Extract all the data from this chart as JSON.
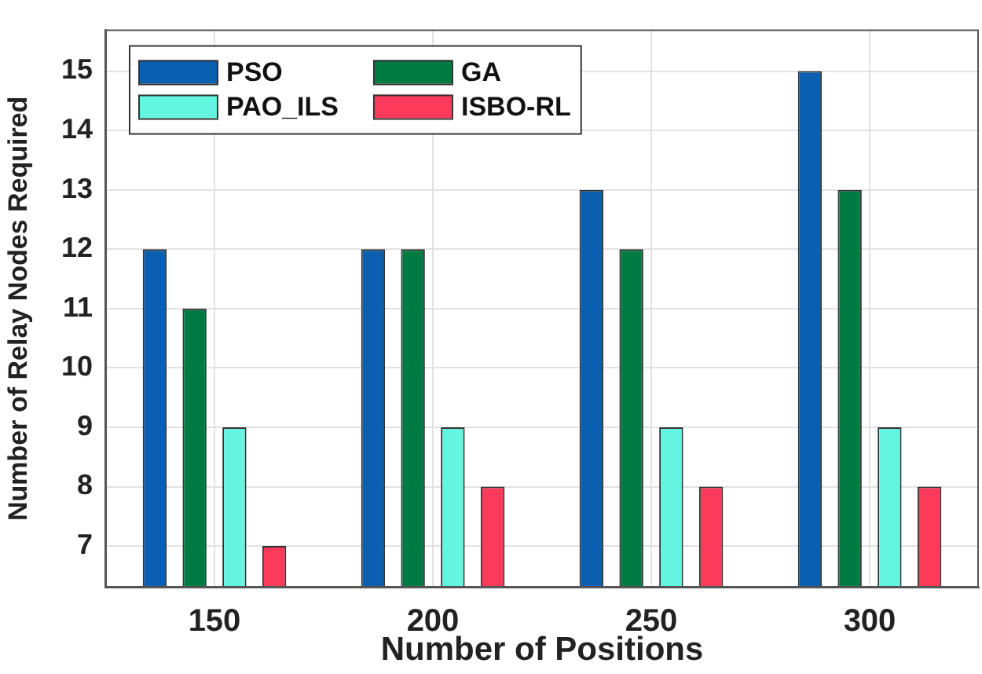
{
  "chart_data": {
    "type": "bar",
    "xlabel": "Number of Positions",
    "ylabel": "Number of Relay Nodes Required",
    "categories": [
      "150",
      "200",
      "250",
      "300"
    ],
    "series": [
      {
        "name": "PSO",
        "color": "#0b5fb0",
        "values": [
          12,
          12,
          13,
          15
        ]
      },
      {
        "name": "GA",
        "color": "#007a43",
        "values": [
          11,
          12,
          12,
          13
        ]
      },
      {
        "name": "PAO_ILS",
        "color": "#63f5e0",
        "values": [
          9,
          9,
          9,
          9
        ]
      },
      {
        "name": "ISBO-RL",
        "color": "#fe3a5a",
        "values": [
          7,
          8,
          8,
          8
        ]
      }
    ],
    "ylim": [
      6.3,
      15.7
    ],
    "yticks": [
      7,
      8,
      9,
      10,
      11,
      12,
      13,
      14,
      15
    ],
    "grid": true,
    "legend": "top left"
  }
}
